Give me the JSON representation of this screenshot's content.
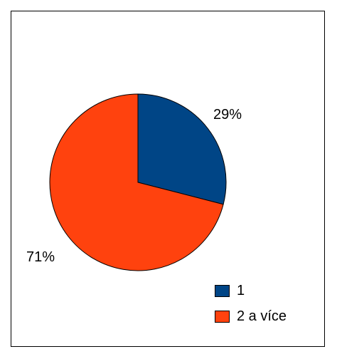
{
  "chart_data": {
    "type": "pie",
    "categories": [
      "1",
      "2 a více"
    ],
    "values": [
      29,
      71
    ],
    "labels": [
      "29%",
      "71%"
    ],
    "colors": [
      "#004586",
      "#ff420e"
    ],
    "legend": "bottom-right"
  }
}
